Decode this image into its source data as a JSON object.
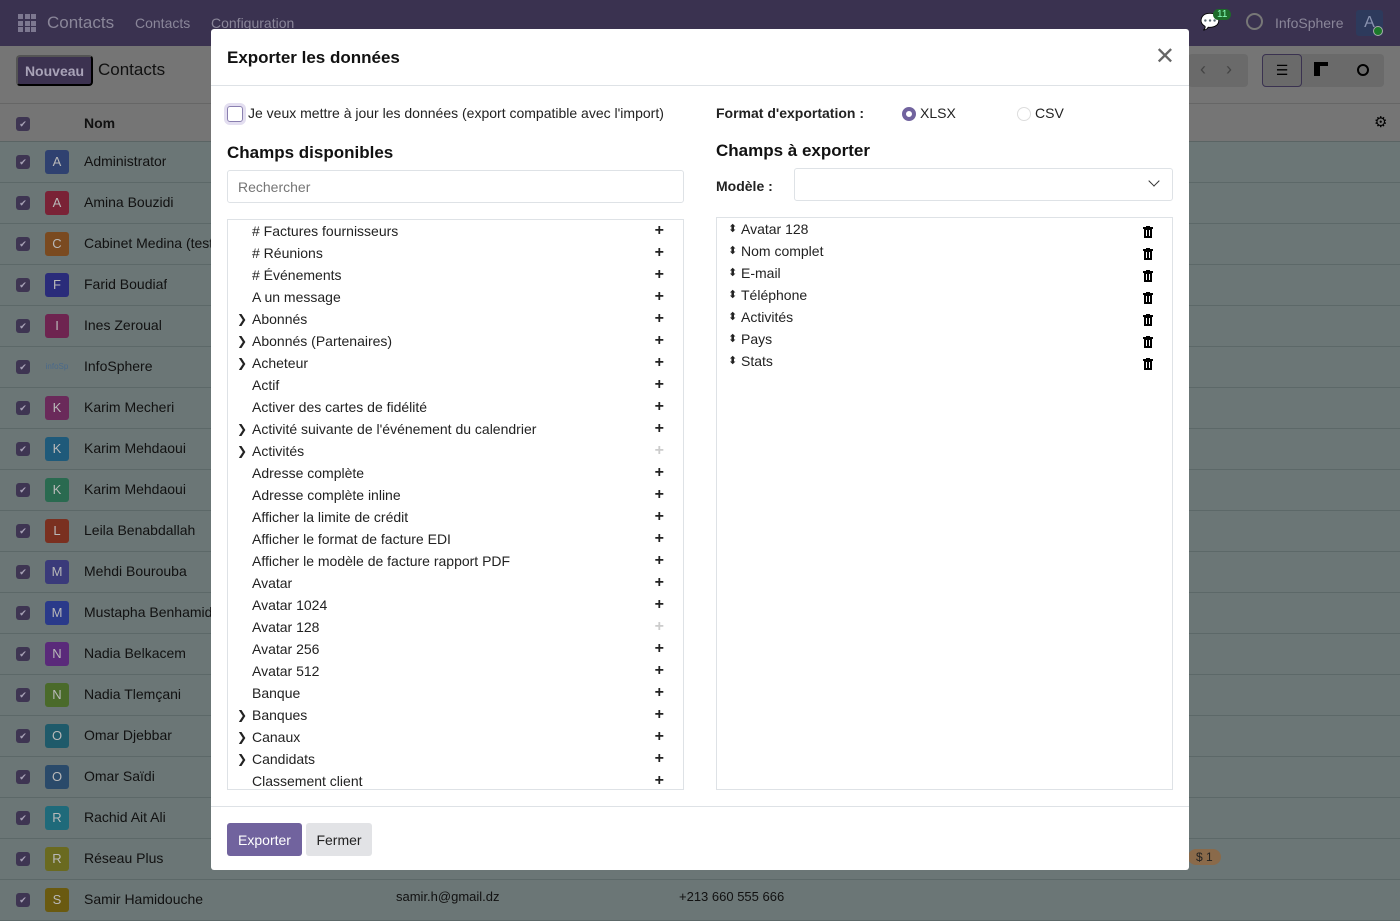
{
  "topbar": {
    "app_title": "Contacts",
    "menu": [
      "Contacts",
      "Configuration"
    ],
    "messages_count": "11",
    "company": "InfoSphere",
    "user_initial": "A"
  },
  "control": {
    "new_button": "Nouveau",
    "breadcrumb": "Contacts"
  },
  "list": {
    "column_name": "Nom",
    "rows": [
      {
        "initial": "A",
        "name": "Administrator",
        "color": "#2f4170"
      },
      {
        "initial": "A",
        "name": "Amina Bouzidi",
        "color": "#7a2236"
      },
      {
        "initial": "C",
        "name": "Cabinet Medina (test)",
        "color": "#7a4a20"
      },
      {
        "initial": "F",
        "name": "Farid Boudiaf",
        "color": "#2a2c7a"
      },
      {
        "initial": "I",
        "name": "Ines Zeroual",
        "color": "#6e2450"
      },
      {
        "initial": "infoSp",
        "name": "InfoSphere",
        "color": "#6b7676"
      },
      {
        "initial": "K",
        "name": "Karim Mecheri",
        "color": "#6a2a5a"
      },
      {
        "initial": "K",
        "name": "Karim Mehdaoui",
        "color": "#1f5a7a"
      },
      {
        "initial": "K",
        "name": "Karim Mehdaoui",
        "color": "#2a6a50"
      },
      {
        "initial": "L",
        "name": "Leila Benabdallah",
        "color": "#7a3020"
      },
      {
        "initial": "M",
        "name": "Mehdi Bourouba",
        "color": "#3a3a7a"
      },
      {
        "initial": "M",
        "name": "Mustapha Benhamida",
        "color": "#2a3a8a"
      },
      {
        "initial": "N",
        "name": "Nadia Belkacem",
        "color": "#5a2a7a"
      },
      {
        "initial": "N",
        "name": "Nadia Tlemçani",
        "color": "#4a6a2a"
      },
      {
        "initial": "O",
        "name": "Omar Djebbar",
        "color": "#1f5a6a"
      },
      {
        "initial": "O",
        "name": "Omar Saïdi",
        "color": "#2a4a6a"
      },
      {
        "initial": "R",
        "name": "Rachid Ait Ali",
        "color": "#1f6a7a"
      },
      {
        "initial": "R",
        "name": "Réseau Plus",
        "color": "#6a6a20"
      },
      {
        "initial": "S",
        "name": "Samir Hamidouche",
        "color": "#6a5a10",
        "email": "samir.h@gmail.dz",
        "phone": "+213 660 555 666"
      }
    ],
    "badge": "$ 1"
  },
  "dialog": {
    "title": "Exporter les données",
    "update_checkbox_label": "Je veux mettre à jour les données (export compatible avec l'import)",
    "update_checked": false,
    "format_label": "Format d'exportation :",
    "formats": [
      {
        "label": "XLSX",
        "selected": true
      },
      {
        "label": "CSV",
        "selected": false
      }
    ],
    "available_title": "Champs disponibles",
    "search_placeholder": "Rechercher",
    "available_fields": [
      {
        "label": "# Factures fournisseurs",
        "expandable": false,
        "disabled": false
      },
      {
        "label": "# Réunions",
        "expandable": false,
        "disabled": false
      },
      {
        "label": "# Événements",
        "expandable": false,
        "disabled": false
      },
      {
        "label": "A un message",
        "expandable": false,
        "disabled": false
      },
      {
        "label": "Abonnés",
        "expandable": true,
        "disabled": false
      },
      {
        "label": "Abonnés (Partenaires)",
        "expandable": true,
        "disabled": false
      },
      {
        "label": "Acheteur",
        "expandable": true,
        "disabled": false
      },
      {
        "label": "Actif",
        "expandable": false,
        "disabled": false
      },
      {
        "label": "Activer des cartes de fidélité",
        "expandable": false,
        "disabled": false
      },
      {
        "label": "Activité suivante de l'événement du calendrier",
        "expandable": true,
        "disabled": false
      },
      {
        "label": "Activités",
        "expandable": true,
        "disabled": true
      },
      {
        "label": "Adresse complète",
        "expandable": false,
        "disabled": false
      },
      {
        "label": "Adresse complète inline",
        "expandable": false,
        "disabled": false
      },
      {
        "label": "Afficher la limite de crédit",
        "expandable": false,
        "disabled": false
      },
      {
        "label": "Afficher le format de facture EDI",
        "expandable": false,
        "disabled": false
      },
      {
        "label": "Afficher le modèle de facture rapport PDF",
        "expandable": false,
        "disabled": false
      },
      {
        "label": "Avatar",
        "expandable": false,
        "disabled": false
      },
      {
        "label": "Avatar 1024",
        "expandable": false,
        "disabled": false
      },
      {
        "label": "Avatar 128",
        "expandable": false,
        "disabled": true
      },
      {
        "label": "Avatar 256",
        "expandable": false,
        "disabled": false
      },
      {
        "label": "Avatar 512",
        "expandable": false,
        "disabled": false
      },
      {
        "label": "Banque",
        "expandable": false,
        "disabled": false
      },
      {
        "label": "Banques",
        "expandable": true,
        "disabled": false
      },
      {
        "label": "Canaux",
        "expandable": true,
        "disabled": false
      },
      {
        "label": "Candidats",
        "expandable": true,
        "disabled": false
      },
      {
        "label": "Classement client",
        "expandable": false,
        "disabled": false
      }
    ],
    "export_title": "Champs à exporter",
    "template_label": "Modèle :",
    "template_value": "",
    "export_fields": [
      "Avatar 128",
      "Nom complet",
      "E-mail",
      "Téléphone",
      "Activités",
      "Pays",
      "Stats"
    ],
    "export_button": "Exporter",
    "close_button": "Fermer"
  }
}
